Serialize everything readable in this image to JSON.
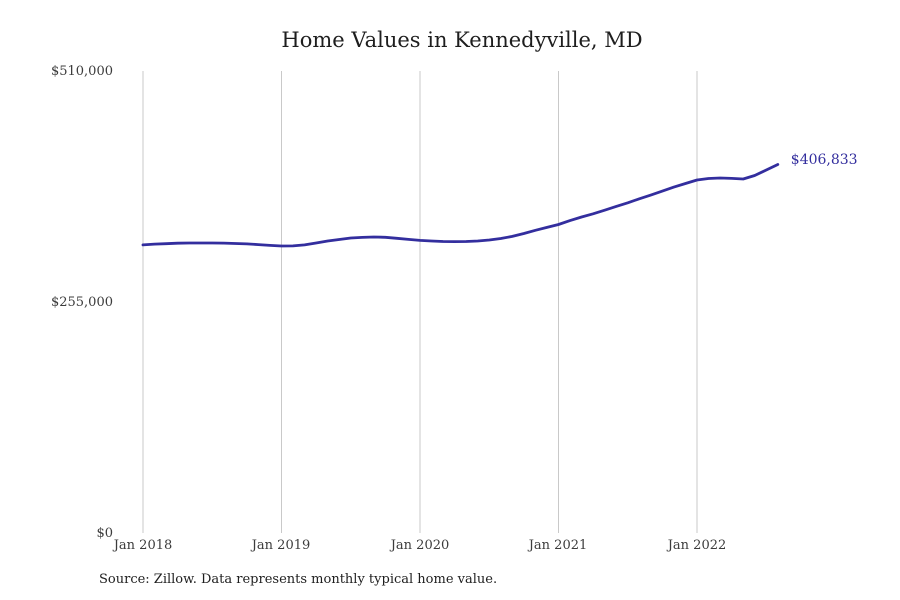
{
  "title": "Home Values in Kennedyville, MD",
  "source_note": "Source: Zillow. Data represents monthly typical home value.",
  "colors": {
    "line": "#332e9e",
    "grid": "#c9c9c9",
    "title_text": "#1e1e1e",
    "tick_text": "#3c3c3c",
    "annotation_text": "#332e9e",
    "background": "#ffffff"
  },
  "chart_data": {
    "type": "line",
    "title": "Home Values in Kennedyville, MD",
    "xlabel": "",
    "ylabel": "",
    "ylim": [
      0,
      510000
    ],
    "y_ticks": [
      0,
      255000,
      510000
    ],
    "y_tick_labels": [
      "$0",
      "$255,000",
      "$510,000"
    ],
    "x_tick_labels": [
      "Jan 2018",
      "Jan 2019",
      "Jan 2020",
      "Jan 2021",
      "Jan 2022"
    ],
    "grid": "vertical-only",
    "legend": "none",
    "last_value_annotation": "$406,833",
    "series_name": "Typical home value (monthly)",
    "months": [
      "Jan 2018",
      "Feb 2018",
      "Mar 2018",
      "Apr 2018",
      "May 2018",
      "Jun 2018",
      "Jul 2018",
      "Aug 2018",
      "Sep 2018",
      "Oct 2018",
      "Nov 2018",
      "Dec 2018",
      "Jan 2019",
      "Feb 2019",
      "Mar 2019",
      "Apr 2019",
      "May 2019",
      "Jun 2019",
      "Jul 2019",
      "Aug 2019",
      "Sep 2019",
      "Oct 2019",
      "Nov 2019",
      "Dec 2019",
      "Jan 2020",
      "Feb 2020",
      "Mar 2020",
      "Apr 2020",
      "May 2020",
      "Jun 2020",
      "Jul 2020",
      "Aug 2020",
      "Sep 2020",
      "Oct 2020",
      "Nov 2020",
      "Dec 2020",
      "Jan 2021",
      "Feb 2021",
      "Mar 2021",
      "Apr 2021",
      "May 2021",
      "Jun 2021",
      "Jul 2021",
      "Aug 2021",
      "Sep 2021",
      "Oct 2021",
      "Nov 2021",
      "Dec 2021",
      "Jan 2022",
      "Feb 2022",
      "Mar 2022",
      "Apr 2022",
      "May 2022",
      "Jun 2022",
      "Jul 2022",
      "Aug 2022"
    ],
    "values": [
      318000,
      318900,
      319400,
      319900,
      320100,
      320100,
      320100,
      320000,
      319600,
      319100,
      318400,
      317500,
      316800,
      316900,
      318000,
      320100,
      322300,
      324000,
      325600,
      326300,
      326800,
      326400,
      325300,
      324100,
      323000,
      322300,
      321800,
      321700,
      321800,
      322300,
      323400,
      325100,
      327400,
      330600,
      334200,
      337300,
      340500,
      344900,
      348800,
      352400,
      356300,
      360500,
      364500,
      368900,
      373000,
      377400,
      381800,
      385800,
      389700,
      391300,
      391900,
      391400,
      390800,
      394600,
      400700,
      406833
    ]
  }
}
